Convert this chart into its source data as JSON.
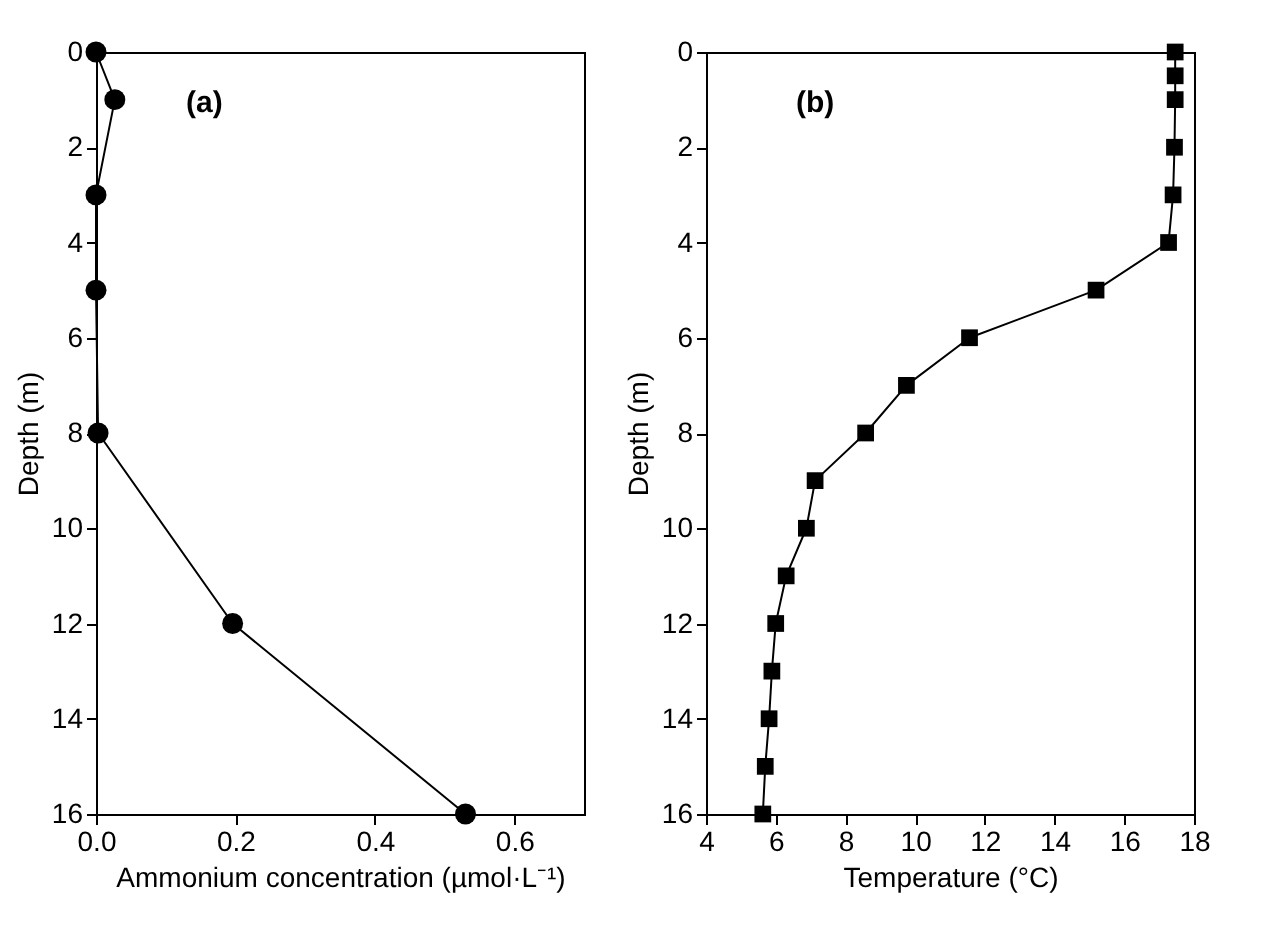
{
  "chart_data": [
    {
      "type": "line",
      "xlabel": "Ammonium concentration (µmol·L⁻¹)",
      "ylabel": "Depth (m)",
      "annotations": [
        "(a)"
      ],
      "marker": "circle",
      "grid": false,
      "x": [
        0,
        0.027,
        0,
        0,
        0.003,
        0.196,
        0.53
      ],
      "series": [
        {
          "color": "#000000",
          "values": [
            0,
            1,
            3,
            5,
            8,
            12,
            16
          ]
        }
      ],
      "xlim": [
        0,
        0.7
      ],
      "xticks": [
        {
          "value": 0,
          "label": "0.0"
        },
        0.2,
        0.4,
        0.6
      ],
      "ylim": [
        16,
        0
      ],
      "yticks": [
        0,
        2,
        4,
        6,
        8,
        10,
        12,
        14,
        16
      ]
    },
    {
      "type": "line",
      "xlabel": "Temperature (°C)",
      "ylabel": "Depth (m)",
      "annotations": [
        "(b)"
      ],
      "marker": "square",
      "grid": false,
      "x": [
        17.46,
        17.46,
        17.46,
        17.44,
        17.4,
        17.27,
        15.19,
        11.56,
        9.75,
        8.58,
        7.13,
        6.88,
        6.3,
        6.0,
        5.89,
        5.81,
        5.7,
        5.63
      ],
      "series": [
        {
          "color": "#000000",
          "values": [
            0,
            0.5,
            1,
            2,
            3,
            4,
            5,
            6,
            7,
            8,
            9,
            10,
            11,
            12,
            13,
            14,
            15,
            16
          ]
        }
      ],
      "xlim": [
        4,
        18
      ],
      "xticks": [
        4,
        6,
        8,
        10,
        12,
        14,
        16,
        18
      ],
      "ylim": [
        16,
        0
      ],
      "yticks": [
        0,
        2,
        4,
        6,
        8,
        10,
        12,
        14,
        16
      ]
    }
  ]
}
